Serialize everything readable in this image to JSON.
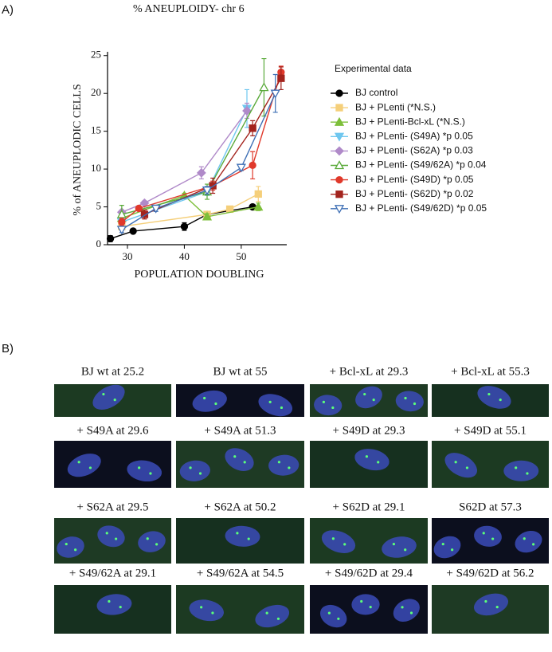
{
  "chart_data": {
    "type": "line",
    "panel_label": "A)",
    "title": "% ANEUPLOIDY-  chr 6",
    "x_label": "POPULATION DOUBLING",
    "y_label": "% of ANEUPLODIC  CELLS",
    "legend_title": "Experimental data",
    "xlim": [
      26.5,
      58
    ],
    "xticks": [
      30,
      40,
      50
    ],
    "ylim": [
      0,
      25.5
    ],
    "yticks": [
      0,
      5,
      10,
      15,
      20,
      25
    ],
    "series": [
      {
        "name": "BJ  control",
        "color": "#000000",
        "marker": "circle",
        "x": [
          27,
          31,
          40,
          44,
          52
        ],
        "values": [
          0.8,
          1.8,
          2.4,
          4.0,
          5.0
        ],
        "errors": [
          0.4,
          0.2,
          0.5,
          0.3,
          0.3
        ]
      },
      {
        "name": "BJ + PLenti (*N.S.)",
        "color": "#f5cf7a",
        "marker": "square",
        "x": [
          29,
          44,
          48,
          53
        ],
        "values": [
          2.4,
          4.0,
          4.7,
          6.7
        ],
        "errors": [
          0.3,
          0.3,
          0.2,
          1.0
        ]
      },
      {
        "name": "BJ + PLenti-Bcl-xL (*N.S.)",
        "color": "#7dbf3a",
        "marker": "triangle",
        "x": [
          29,
          40,
          44,
          53
        ],
        "values": [
          3.5,
          6.5,
          3.7,
          5.0
        ],
        "errors": [
          0.5,
          0.3,
          0.4,
          0.5
        ]
      },
      {
        "name": "BJ + PLenti- (S49A) *p 0.05",
        "color": "#6fc7ef",
        "marker": "triangle-down",
        "x": [
          29,
          44,
          51
        ],
        "values": [
          3.0,
          7.0,
          18.0
        ],
        "errors": [
          0.5,
          0.5,
          2.5
        ]
      },
      {
        "name": "BJ + PLenti- (S62A) *p 0.03",
        "color": "#b08ac9",
        "marker": "diamond",
        "x": [
          29,
          33,
          43,
          51
        ],
        "values": [
          4.3,
          5.5,
          9.5,
          17.7
        ],
        "errors": [
          0.3,
          0.3,
          0.8,
          1.0
        ]
      },
      {
        "name": "BJ + PLenti- (S49/62A)  *p 0.04",
        "color": "#5aaa3a",
        "marker": "triangle-open",
        "x": [
          29,
          44,
          54
        ],
        "values": [
          4.0,
          7.0,
          20.8
        ],
        "errors": [
          1.2,
          1.0,
          3.8
        ]
      },
      {
        "name": "BJ + PLenti- (S49D)  *p 0.05",
        "color": "#e0392b",
        "marker": "circle",
        "x": [
          29,
          32,
          45,
          52,
          57
        ],
        "values": [
          3.0,
          4.8,
          7.8,
          10.5,
          22.8
        ],
        "errors": [
          0.5,
          0.3,
          0.6,
          1.8,
          0.8
        ]
      },
      {
        "name": "BJ + PLenti- (S62D)  *p  0.02",
        "color": "#a3231d",
        "marker": "square",
        "x": [
          33,
          45,
          52,
          57
        ],
        "values": [
          4.0,
          7.8,
          15.4,
          22.0
        ],
        "errors": [
          0.6,
          1.0,
          1.0,
          1.5
        ]
      },
      {
        "name": "BJ + PLenti- (S49/62D) *p 0.05",
        "color": "#3e6fb5",
        "marker": "triangle-down-open",
        "x": [
          29,
          35,
          44,
          50,
          56
        ],
        "values": [
          2.0,
          4.8,
          7.2,
          10.2,
          20.0
        ],
        "errors": [
          0.4,
          0.4,
          0.5,
          0.4,
          2.5
        ]
      }
    ]
  },
  "images_panel": {
    "label": "B)",
    "captions": [
      "BJ wt at 25.2",
      "BJ wt at 55",
      "+ Bcl-xL at 29.3",
      "+ Bcl-xL at 55.3",
      "+ S49A at 29.6",
      "+ S49A at 51.3",
      "+ S49D at 29.3",
      "+ S49D at 55.1",
      "+ S62A at 29.5",
      "+ S62A at 50.2",
      "+ S62D at 29.1",
      "S62D at 57.3",
      "+ S49/62A at 29.1",
      "+ S49/62A at 54.5",
      "+ S49/62D at 29.4",
      "+ S49/62D at 56.2"
    ]
  }
}
